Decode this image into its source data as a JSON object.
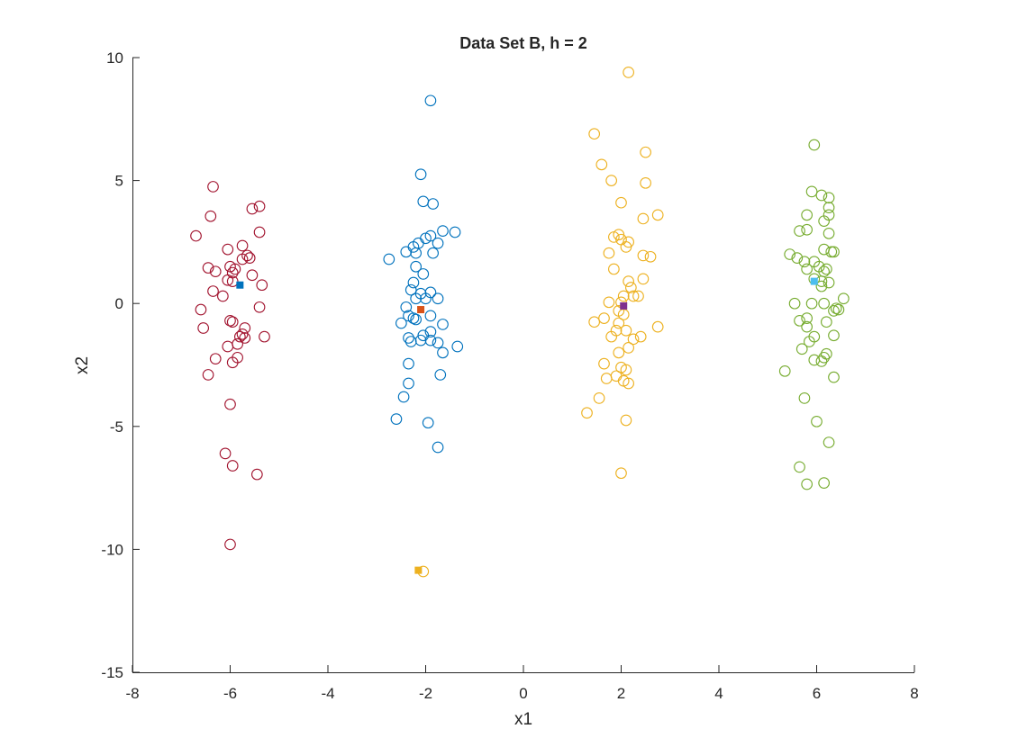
{
  "chart_data": {
    "type": "scatter",
    "title": "Data Set B, h = 2",
    "xlabel": "x1",
    "ylabel": "x2",
    "xlim": [
      -8,
      8
    ],
    "ylim": [
      -15,
      10
    ],
    "xticks": [
      -8,
      -6,
      -4,
      -2,
      0,
      2,
      4,
      6,
      8
    ],
    "yticks": [
      -15,
      -10,
      -5,
      0,
      5,
      10
    ],
    "xtick_labels": [
      "-8",
      "-6",
      "-4",
      "-2",
      "0",
      "2",
      "4",
      "6",
      "8"
    ],
    "ytick_labels": [
      "-15",
      "-10",
      "-5",
      "0",
      "5",
      "10"
    ],
    "grid": false,
    "series": [
      {
        "marker": "circle-open",
        "color": "#A2142F",
        "points": [
          [
            -6.35,
            4.75
          ],
          [
            -6.4,
            3.55
          ],
          [
            -5.55,
            3.85
          ],
          [
            -5.4,
            3.95
          ],
          [
            -6.7,
            2.75
          ],
          [
            -6.05,
            2.2
          ],
          [
            -5.75,
            2.35
          ],
          [
            -5.4,
            2.9
          ],
          [
            -5.65,
            1.95
          ],
          [
            -5.75,
            1.8
          ],
          [
            -5.6,
            1.85
          ],
          [
            -6.45,
            1.45
          ],
          [
            -6.3,
            1.3
          ],
          [
            -6.0,
            1.5
          ],
          [
            -5.9,
            1.4
          ],
          [
            -5.95,
            1.25
          ],
          [
            -5.55,
            1.15
          ],
          [
            -6.05,
            0.95
          ],
          [
            -5.95,
            0.9
          ],
          [
            -6.35,
            0.5
          ],
          [
            -6.15,
            0.3
          ],
          [
            -5.35,
            0.75
          ],
          [
            -6.6,
            -0.25
          ],
          [
            -5.4,
            -0.15
          ],
          [
            -6.0,
            -0.7
          ],
          [
            -5.95,
            -0.75
          ],
          [
            -6.55,
            -1.0
          ],
          [
            -5.7,
            -1.0
          ],
          [
            -5.75,
            -1.25
          ],
          [
            -5.8,
            -1.35
          ],
          [
            -5.7,
            -1.4
          ],
          [
            -5.3,
            -1.35
          ],
          [
            -5.85,
            -1.65
          ],
          [
            -6.05,
            -1.75
          ],
          [
            -6.3,
            -2.25
          ],
          [
            -5.85,
            -2.2
          ],
          [
            -5.95,
            -2.4
          ],
          [
            -6.45,
            -2.9
          ],
          [
            -6.0,
            -4.1
          ],
          [
            -6.1,
            -6.1
          ],
          [
            -5.95,
            -6.6
          ],
          [
            -5.45,
            -6.95
          ],
          [
            -6.0,
            -9.8
          ]
        ]
      },
      {
        "marker": "circle-open",
        "color": "#0072BD",
        "points": [
          [
            -1.9,
            8.25
          ],
          [
            -2.1,
            5.25
          ],
          [
            -2.05,
            4.15
          ],
          [
            -1.85,
            4.05
          ],
          [
            -1.65,
            2.95
          ],
          [
            -1.4,
            2.9
          ],
          [
            -2.0,
            2.65
          ],
          [
            -1.9,
            2.75
          ],
          [
            -2.15,
            2.45
          ],
          [
            -2.25,
            2.3
          ],
          [
            -1.75,
            2.45
          ],
          [
            -2.4,
            2.1
          ],
          [
            -2.2,
            2.05
          ],
          [
            -1.85,
            2.05
          ],
          [
            -2.75,
            1.8
          ],
          [
            -2.2,
            1.5
          ],
          [
            -2.05,
            1.2
          ],
          [
            -2.25,
            0.85
          ],
          [
            -2.3,
            0.55
          ],
          [
            -2.1,
            0.4
          ],
          [
            -1.9,
            0.45
          ],
          [
            -2.2,
            0.2
          ],
          [
            -2.0,
            0.2
          ],
          [
            -1.75,
            0.2
          ],
          [
            -2.4,
            -0.15
          ],
          [
            -2.35,
            -0.5
          ],
          [
            -2.25,
            -0.6
          ],
          [
            -2.2,
            -0.65
          ],
          [
            -1.9,
            -0.5
          ],
          [
            -2.5,
            -0.8
          ],
          [
            -1.65,
            -0.85
          ],
          [
            -2.05,
            -1.3
          ],
          [
            -1.9,
            -1.15
          ],
          [
            -2.35,
            -1.4
          ],
          [
            -2.3,
            -1.55
          ],
          [
            -2.1,
            -1.5
          ],
          [
            -1.75,
            -1.6
          ],
          [
            -1.9,
            -1.5
          ],
          [
            -1.65,
            -2.0
          ],
          [
            -1.35,
            -1.75
          ],
          [
            -2.35,
            -2.45
          ],
          [
            -1.7,
            -2.9
          ],
          [
            -2.35,
            -3.25
          ],
          [
            -2.45,
            -3.8
          ],
          [
            -2.6,
            -4.7
          ],
          [
            -1.95,
            -4.85
          ],
          [
            -1.75,
            -5.85
          ]
        ]
      },
      {
        "marker": "circle-open",
        "color": "#EDB120",
        "points": [
          [
            2.15,
            9.4
          ],
          [
            1.45,
            6.9
          ],
          [
            2.5,
            6.15
          ],
          [
            1.6,
            5.65
          ],
          [
            1.8,
            5.0
          ],
          [
            2.5,
            4.9
          ],
          [
            2.0,
            4.1
          ],
          [
            2.75,
            3.6
          ],
          [
            2.45,
            3.45
          ],
          [
            1.95,
            2.8
          ],
          [
            1.85,
            2.7
          ],
          [
            2.0,
            2.6
          ],
          [
            2.15,
            2.5
          ],
          [
            2.1,
            2.3
          ],
          [
            1.75,
            2.05
          ],
          [
            2.45,
            1.95
          ],
          [
            2.6,
            1.9
          ],
          [
            1.85,
            1.4
          ],
          [
            2.15,
            0.9
          ],
          [
            2.45,
            1.0
          ],
          [
            2.2,
            0.65
          ],
          [
            2.05,
            0.3
          ],
          [
            2.25,
            0.3
          ],
          [
            2.35,
            0.3
          ],
          [
            1.75,
            0.05
          ],
          [
            2.0,
            0.05
          ],
          [
            1.95,
            -0.3
          ],
          [
            2.05,
            -0.45
          ],
          [
            1.45,
            -0.75
          ],
          [
            1.65,
            -0.6
          ],
          [
            1.95,
            -0.8
          ],
          [
            2.1,
            -1.1
          ],
          [
            1.9,
            -1.1
          ],
          [
            2.75,
            -0.95
          ],
          [
            2.4,
            -1.35
          ],
          [
            2.25,
            -1.45
          ],
          [
            1.8,
            -1.35
          ],
          [
            2.15,
            -1.8
          ],
          [
            1.95,
            -2.0
          ],
          [
            1.65,
            -2.45
          ],
          [
            2.0,
            -2.6
          ],
          [
            1.9,
            -2.95
          ],
          [
            2.1,
            -2.7
          ],
          [
            1.7,
            -3.05
          ],
          [
            2.05,
            -3.15
          ],
          [
            2.15,
            -3.25
          ],
          [
            1.55,
            -3.85
          ],
          [
            1.3,
            -4.45
          ],
          [
            2.1,
            -4.75
          ],
          [
            2.0,
            -6.9
          ],
          [
            -2.05,
            -10.9
          ]
        ]
      },
      {
        "marker": "circle-open",
        "color": "#77AC30",
        "points": [
          [
            5.95,
            6.45
          ],
          [
            5.9,
            4.55
          ],
          [
            6.1,
            4.4
          ],
          [
            6.25,
            4.3
          ],
          [
            6.25,
            3.9
          ],
          [
            5.8,
            3.6
          ],
          [
            6.25,
            3.6
          ],
          [
            6.15,
            3.35
          ],
          [
            5.8,
            3.0
          ],
          [
            5.65,
            2.95
          ],
          [
            6.25,
            2.85
          ],
          [
            6.15,
            2.2
          ],
          [
            6.35,
            2.1
          ],
          [
            6.3,
            2.1
          ],
          [
            5.45,
            2.0
          ],
          [
            5.6,
            1.85
          ],
          [
            5.75,
            1.7
          ],
          [
            5.95,
            1.7
          ],
          [
            6.05,
            1.5
          ],
          [
            6.2,
            1.4
          ],
          [
            6.15,
            1.3
          ],
          [
            5.8,
            1.4
          ],
          [
            5.95,
            1.0
          ],
          [
            6.1,
            0.9
          ],
          [
            6.25,
            0.85
          ],
          [
            6.1,
            0.7
          ],
          [
            6.55,
            0.2
          ],
          [
            5.55,
            0.0
          ],
          [
            5.9,
            0.0
          ],
          [
            6.15,
            0.0
          ],
          [
            6.4,
            -0.2
          ],
          [
            6.45,
            -0.25
          ],
          [
            6.35,
            -0.3
          ],
          [
            5.65,
            -0.7
          ],
          [
            5.8,
            -0.6
          ],
          [
            6.2,
            -0.75
          ],
          [
            5.8,
            -0.95
          ],
          [
            5.95,
            -1.35
          ],
          [
            6.35,
            -1.3
          ],
          [
            5.85,
            -1.55
          ],
          [
            5.7,
            -1.85
          ],
          [
            6.2,
            -2.05
          ],
          [
            6.15,
            -2.2
          ],
          [
            5.95,
            -2.3
          ],
          [
            6.1,
            -2.35
          ],
          [
            5.35,
            -2.75
          ],
          [
            6.35,
            -3.0
          ],
          [
            5.75,
            -3.85
          ],
          [
            6.0,
            -4.8
          ],
          [
            6.25,
            -5.65
          ],
          [
            5.65,
            -6.65
          ],
          [
            5.8,
            -7.35
          ],
          [
            6.15,
            -7.3
          ]
        ]
      }
    ],
    "centers": [
      {
        "x": -5.8,
        "y": 0.75,
        "color": "#0072BD",
        "marker": "square-filled"
      },
      {
        "x": -2.1,
        "y": -0.25,
        "color": "#D95319",
        "marker": "square-filled"
      },
      {
        "x": 2.05,
        "y": -0.1,
        "color": "#7E2F8E",
        "marker": "square-filled"
      },
      {
        "x": 5.95,
        "y": 0.9,
        "color": "#4DBEEE",
        "marker": "square-filled"
      },
      {
        "x": -2.15,
        "y": -10.85,
        "color": "#EDB120",
        "marker": "square-filled"
      }
    ]
  }
}
